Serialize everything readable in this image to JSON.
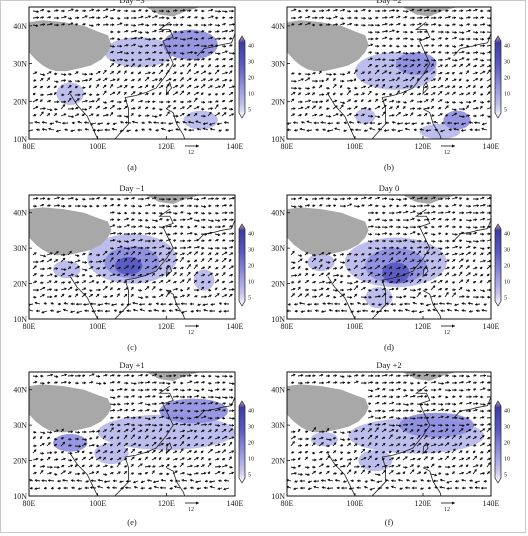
{
  "figure": {
    "colorbar_ticks": [
      "40",
      "30",
      "20",
      "10",
      "5"
    ],
    "x_ticks": [
      "80E",
      "100E",
      "120E",
      "140E"
    ],
    "y_ticks": [
      "40N",
      "30N",
      "20N",
      "10N"
    ],
    "reference_vector_label": "12"
  },
  "chart_data": [
    {
      "type": "heatmap",
      "panel_label": "(a)",
      "title": "Day −3",
      "x_range_deg": [
        80,
        140
      ],
      "y_range_deg": [
        10,
        45
      ],
      "x_ticks": [
        "80E",
        "100E",
        "120E",
        "140E"
      ],
      "y_ticks": [
        "40N",
        "30N",
        "20N",
        "10N"
      ],
      "colorbar": [
        5,
        10,
        20,
        30,
        40
      ],
      "reference_vector": 12
    },
    {
      "type": "heatmap",
      "panel_label": "(b)",
      "title": "Day −2",
      "x_range_deg": [
        80,
        140
      ],
      "y_range_deg": [
        10,
        45
      ],
      "x_ticks": [
        "80E",
        "100E",
        "120E",
        "140E"
      ],
      "y_ticks": [
        "40N",
        "30N",
        "20N",
        "10N"
      ],
      "colorbar": [
        5,
        10,
        20,
        30,
        40
      ],
      "reference_vector": 12
    },
    {
      "type": "heatmap",
      "panel_label": "(c)",
      "title": "Day −1",
      "x_range_deg": [
        80,
        140
      ],
      "y_range_deg": [
        10,
        45
      ],
      "x_ticks": [
        "80E",
        "100E",
        "120E",
        "140E"
      ],
      "y_ticks": [
        "40N",
        "30N",
        "20N",
        "10N"
      ],
      "colorbar": [
        5,
        10,
        20,
        30,
        40
      ],
      "reference_vector": 12
    },
    {
      "type": "heatmap",
      "panel_label": "(d)",
      "title": "Day 0",
      "x_range_deg": [
        80,
        140
      ],
      "y_range_deg": [
        10,
        45
      ],
      "x_ticks": [
        "80E",
        "100E",
        "120E",
        "140E"
      ],
      "y_ticks": [
        "40N",
        "30N",
        "20N",
        "10N"
      ],
      "colorbar": [
        5,
        10,
        20,
        30,
        40
      ],
      "reference_vector": 12
    },
    {
      "type": "heatmap",
      "panel_label": "(e)",
      "title": "Day +1",
      "x_range_deg": [
        80,
        140
      ],
      "y_range_deg": [
        10,
        45
      ],
      "x_ticks": [
        "80E",
        "100E",
        "120E",
        "140E"
      ],
      "y_ticks": [
        "40N",
        "30N",
        "20N",
        "10N"
      ],
      "colorbar": [
        5,
        10,
        20,
        30,
        40
      ],
      "reference_vector": 12
    },
    {
      "type": "heatmap",
      "panel_label": "(f)",
      "title": "Day +2",
      "x_range_deg": [
        80,
        140
      ],
      "y_range_deg": [
        10,
        45
      ],
      "x_ticks": [
        "80E",
        "100E",
        "120E",
        "140E"
      ],
      "y_ticks": [
        "40N",
        "30N",
        "20N",
        "10N"
      ],
      "colorbar": [
        5,
        10,
        20,
        30,
        40
      ],
      "reference_vector": 12
    }
  ],
  "colors": {
    "land": "#a8a8a8",
    "shade_light": "#b7b7ec",
    "shade_mid": "#8c8cdf",
    "shade_dark": "#5656c2",
    "vector": "#111111",
    "colorbar_top": "#e8a8a0",
    "colorbar_bottom": "#ffffff"
  }
}
